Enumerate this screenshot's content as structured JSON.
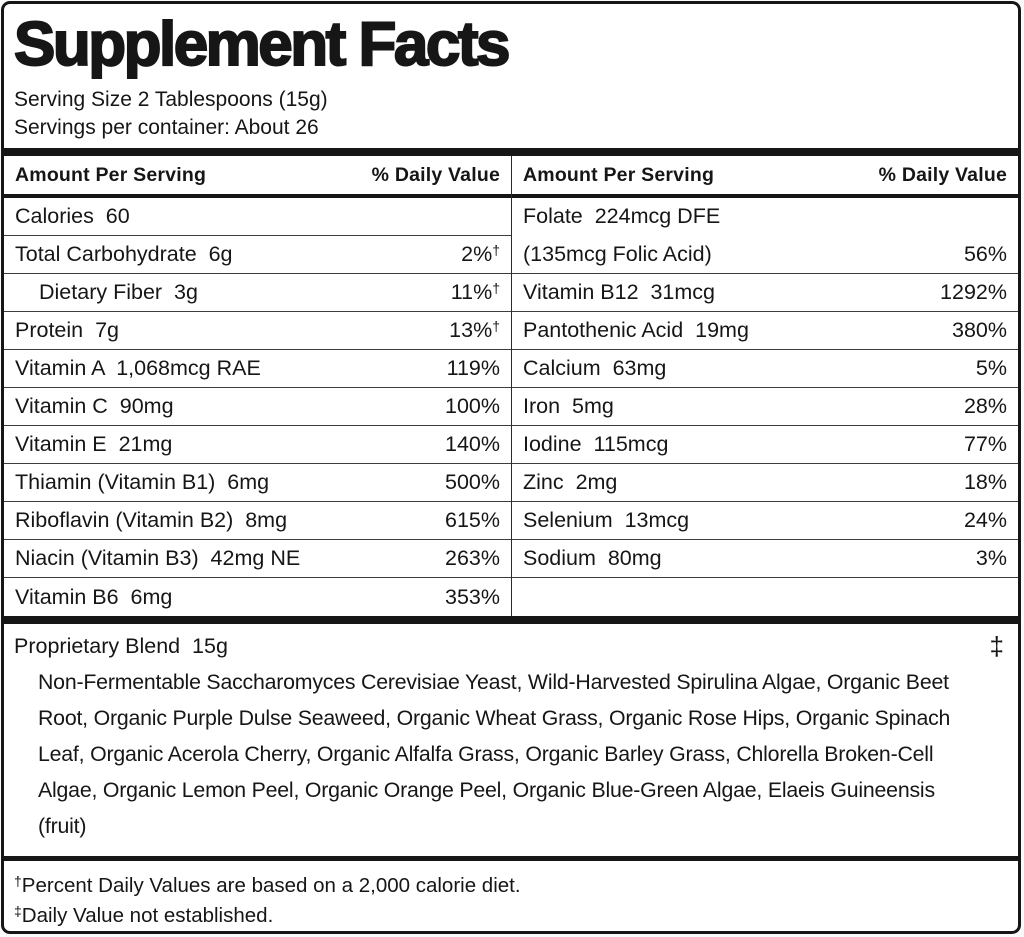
{
  "label": {
    "title": "Supplement Facts",
    "serving_size": "Serving Size 2 Tablespoons (15g)",
    "servings_per_container": "Servings per container: About 26",
    "table": {
      "amount_header": "Amount Per Serving",
      "dv_header": "% Daily Value",
      "left_rows": [
        {
          "label": "Calories  60",
          "dv": "",
          "sup": ""
        },
        {
          "label": "Total Carbohydrate  6g",
          "dv": "2%",
          "sup": "†"
        },
        {
          "label": "Dietary Fiber  3g",
          "dv": "11%",
          "sup": "†",
          "indent": true
        },
        {
          "label": "Protein  7g",
          "dv": "13%",
          "sup": "†"
        },
        {
          "label": "Vitamin A  1,068mcg RAE",
          "dv": "119%",
          "sup": ""
        },
        {
          "label": "Vitamin C  90mg",
          "dv": "100%",
          "sup": ""
        },
        {
          "label": "Vitamin E  21mg",
          "dv": "140%",
          "sup": ""
        },
        {
          "label": "Thiamin (Vitamin B1)  6mg",
          "dv": "500%",
          "sup": ""
        },
        {
          "label": "Riboflavin (Vitamin B2)  8mg",
          "dv": "615%",
          "sup": ""
        },
        {
          "label": "Niacin (Vitamin B3)  42mg NE",
          "dv": "263%",
          "sup": ""
        },
        {
          "label": "Vitamin B6  6mg",
          "dv": "353%",
          "sup": ""
        }
      ],
      "right_rows": [
        {
          "label": "Folate  224mcg DFE",
          "label2": "(135mcg Folic Acid)",
          "dv": "56%",
          "sup": "",
          "tall": true
        },
        {
          "label": "Vitamin B12  31mcg",
          "dv": "1292%",
          "sup": ""
        },
        {
          "label": "Pantothenic Acid  19mg",
          "dv": "380%",
          "sup": ""
        },
        {
          "label": "Calcium  63mg",
          "dv": "5%",
          "sup": ""
        },
        {
          "label": "Iron  5mg",
          "dv": "28%",
          "sup": ""
        },
        {
          "label": "Iodine  115mcg",
          "dv": "77%",
          "sup": ""
        },
        {
          "label": "Zinc  2mg",
          "dv": "18%",
          "sup": ""
        },
        {
          "label": "Selenium  13mcg",
          "dv": "24%",
          "sup": ""
        },
        {
          "label": "Sodium  80mg",
          "dv": "3%",
          "sup": ""
        },
        {
          "label": "",
          "dv": "",
          "sup": "",
          "empty": true
        }
      ]
    },
    "proprietary": {
      "title": "Proprietary Blend  15g",
      "mark": "‡",
      "ingredients": "Non-Fermentable Saccharomyces Cerevisiae Yeast, Wild-Harvested Spirulina Algae, Organic Beet Root, Organic Purple Dulse Seaweed, Organic Wheat Grass, Organic Rose Hips, Organic Spinach Leaf, Organic Acerola Cherry, Organic Alfalfa Grass, Organic Barley Grass, Chlorella Broken-Cell Algae, Organic Lemon Peel, Organic Orange Peel, Organic Blue-Green Algae, Elaeis Guineensis (fruit)"
    },
    "footnotes": [
      {
        "mark": "†",
        "text": "Percent Daily Values are based on a 2,000 calorie diet."
      },
      {
        "mark": "‡",
        "text": "Daily Value not established."
      }
    ],
    "colors": {
      "ink": "#161616",
      "background": "#ffffff",
      "thin_rule": "#3c3c3c"
    }
  }
}
